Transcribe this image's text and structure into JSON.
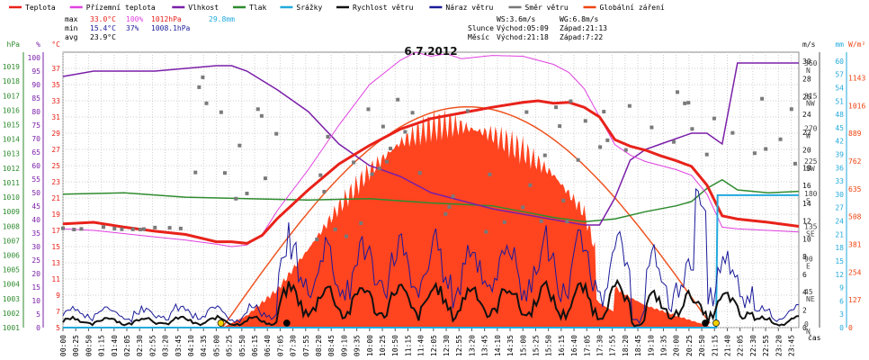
{
  "chart_data": {
    "type": "line",
    "title": "6.7.2012",
    "xlabel": "čas",
    "x_start": "00:00",
    "x_end": "23:59",
    "x_ticks": [
      "00:00",
      "00:25",
      "00:50",
      "01:15",
      "01:40",
      "02:05",
      "02:30",
      "02:55",
      "03:20",
      "03:45",
      "04:10",
      "04:35",
      "05:00",
      "05:25",
      "05:50",
      "06:15",
      "06:40",
      "07:05",
      "07:30",
      "07:55",
      "08:20",
      "08:45",
      "09:10",
      "09:35",
      "10:00",
      "10:25",
      "10:50",
      "11:15",
      "11:40",
      "12:05",
      "12:30",
      "12:55",
      "13:20",
      "13:45",
      "14:10",
      "14:35",
      "15:00",
      "15:25",
      "15:50",
      "16:15",
      "16:40",
      "17:05",
      "17:30",
      "17:55",
      "18:20",
      "18:45",
      "19:10",
      "19:35",
      "20:00",
      "20:25",
      "20:50",
      "21:15",
      "21:40",
      "22:05",
      "22:30",
      "22:55",
      "23:20",
      "23:45"
    ],
    "legend": [
      {
        "label": "Teplota",
        "color": "#e8221a"
      },
      {
        "label": "Přízemní teplota",
        "color": "#e040e0"
      },
      {
        "label": "Vlhkost",
        "color": "#7a1fa8"
      },
      {
        "label": "Tlak",
        "color": "#2e8b2e"
      },
      {
        "label": "Srážky",
        "color": "#22aadd"
      },
      {
        "label": "Rychlost větru",
        "color": "#111111"
      },
      {
        "label": "Náraz větru",
        "color": "#1a1a99"
      },
      {
        "label": "Směr větru",
        "color": "#777777"
      },
      {
        "label": "Globální záření",
        "color": "#ee4411"
      }
    ],
    "stats": {
      "max_label": "max",
      "max_temp": "33.0°C",
      "max_hum": "100%",
      "max_press": "1012hPa",
      "rain_total": "29.8mm",
      "min_label": "min",
      "min_temp": "15.4°C",
      "min_hum": "37%",
      "min_press": "1008.1hPa",
      "avg_label": "avg",
      "avg_temp": "23.9°C"
    },
    "info": {
      "ws": "WS:3.6m/s",
      "wg": "WG:6.8m/s",
      "sun_label": "Slunce",
      "sunrise": "Východ:05:09",
      "sunset": "Západ:21:13",
      "moon_label": "Měsíc",
      "moonrise": "Východ:21:18",
      "moonset": "Západ:7:22"
    },
    "axes_left": {
      "hpa": {
        "unit": "hPa",
        "color": "#2e8b2e",
        "ticks": [
          1001,
          1002,
          1003,
          1004,
          1005,
          1006,
          1007,
          1008,
          1009,
          1010,
          1011,
          1012,
          1013,
          1014,
          1015,
          1016,
          1017,
          1018,
          1019
        ]
      },
      "pct": {
        "unit": "%",
        "color": "#7a1fa8",
        "ticks": [
          0,
          5,
          10,
          15,
          20,
          25,
          30,
          35,
          40,
          45,
          50,
          55,
          60,
          65,
          70,
          75,
          80,
          85,
          90,
          95,
          100
        ]
      },
      "temp": {
        "unit": "°C",
        "color": "#e8221a",
        "ticks": [
          5,
          7,
          9,
          11,
          13,
          15,
          17,
          19,
          21,
          23,
          25,
          27,
          29,
          31,
          33,
          35,
          37
        ]
      }
    },
    "axes_right": {
      "ms": {
        "unit": "m/s",
        "color": "#111111",
        "ticks": [
          0,
          2,
          4,
          6,
          8,
          10,
          12,
          14,
          16,
          18,
          20,
          22,
          24,
          26,
          28,
          30
        ]
      },
      "dir": {
        "ticks": [
          "N",
          "NE",
          "E",
          "SE",
          "S",
          "SW",
          "W",
          "NW",
          "N"
        ],
        "values": [
          0,
          45,
          90,
          135,
          180,
          225,
          270,
          315,
          360
        ]
      },
      "mm": {
        "unit": "mm",
        "color": "#22aadd",
        "ticks": [
          0,
          3,
          6,
          9,
          12,
          15,
          18,
          21,
          24,
          27,
          30,
          33,
          36,
          39,
          42,
          45,
          48,
          51,
          54,
          57,
          60
        ]
      },
      "wm2": {
        "unit": "W/m²",
        "color": "#ee4411",
        "ticks": [
          0,
          127,
          254,
          381,
          508,
          635,
          762,
          889,
          1016,
          1143
        ]
      }
    },
    "ylim_temp": [
      5,
      39
    ],
    "ylim_hum": [
      0,
      102
    ],
    "ylim_press": [
      1001,
      1020
    ],
    "ylim_wind": [
      0,
      31
    ],
    "ylim_dir": [
      0,
      380
    ],
    "ylim_rain": [
      0,
      62
    ],
    "ylim_rad": [
      0,
      1260
    ],
    "series": [
      {
        "name": "Teplota",
        "color": "#e8221a",
        "x_hours": [
          0,
          1,
          2,
          3,
          4,
          5,
          5.5,
          6,
          6.5,
          7,
          8,
          9,
          10,
          11,
          12,
          13,
          14,
          15,
          15.5,
          16,
          16.5,
          17,
          17.5,
          18,
          18.5,
          19,
          19.5,
          20,
          20.5,
          21,
          21.5,
          22,
          23,
          24
        ],
        "values": [
          17.8,
          18.0,
          17.4,
          16.9,
          16.5,
          15.6,
          15.6,
          15.4,
          16.4,
          18.5,
          22,
          25.2,
          27.5,
          29.5,
          30.8,
          31.5,
          32.2,
          32.8,
          33.0,
          32.7,
          32.8,
          32.2,
          31.0,
          28.2,
          27.4,
          26.9,
          26.2,
          25.6,
          24.9,
          22.6,
          18.8,
          18.4,
          18.0,
          17.5
        ]
      },
      {
        "name": "Přízemní teplota",
        "color": "#e040e0",
        "x_hours": [
          0,
          1,
          2,
          3,
          4,
          5,
          5.5,
          6,
          6.5,
          7,
          8,
          9,
          10,
          11,
          11.5,
          12,
          12.5,
          13,
          14,
          15,
          16,
          16.5,
          17,
          17.5,
          18,
          18.5,
          19,
          20,
          20.5,
          21,
          21.5,
          22,
          23,
          24
        ],
        "values": [
          17.2,
          17.0,
          16.6,
          16.2,
          15.8,
          15.3,
          15.0,
          15.2,
          16.5,
          19.5,
          24.5,
          30,
          35,
          38,
          39,
          38.5,
          38.8,
          38.2,
          38.6,
          38.5,
          37.5,
          36.5,
          34.5,
          31,
          27.6,
          26.3,
          25.5,
          24.5,
          23.8,
          21.5,
          17.4,
          17.2,
          17,
          16.8
        ]
      },
      {
        "name": "Vlhkost",
        "color": "#7a1fa8",
        "x_hours": [
          0,
          1,
          2,
          3,
          4,
          5,
          5.5,
          6,
          7,
          8,
          9,
          10,
          11,
          12,
          13,
          14,
          15,
          16,
          17,
          17.5,
          18,
          18.5,
          19,
          19.5,
          20,
          20.5,
          21,
          21.5,
          22,
          23,
          24
        ],
        "values": [
          93,
          95,
          95,
          95,
          96,
          97,
          97,
          95,
          88,
          80,
          68,
          60,
          56,
          50,
          47,
          44,
          42,
          40,
          38,
          38,
          48,
          62,
          66,
          68,
          70,
          72,
          72,
          68,
          98,
          98,
          98
        ]
      },
      {
        "name": "Tlak",
        "color": "#2e8b2e",
        "x_hours": [
          0,
          2,
          4,
          6,
          8,
          10,
          12,
          14,
          15,
          16,
          17,
          18,
          19,
          20,
          20.5,
          21,
          21.5,
          22,
          23,
          24
        ],
        "values": [
          1010.2,
          1010.3,
          1010.0,
          1009.9,
          1009.8,
          1009.9,
          1009.6,
          1009.4,
          1009.0,
          1008.6,
          1008.3,
          1008.5,
          1009.0,
          1009.4,
          1009.7,
          1010.6,
          1011.2,
          1010.5,
          1010.3,
          1010.4
        ]
      },
      {
        "name": "Srážky",
        "color": "#22aadd",
        "x_hours": [
          0,
          21.3,
          21.35,
          24
        ],
        "values": [
          0,
          0,
          29.8,
          29.8
        ]
      },
      {
        "name": "Globální záření",
        "color": "#ee4411",
        "x_hours": [
          5.2,
          6,
          7,
          8,
          9,
          10,
          11,
          12,
          12.5,
          13,
          14,
          15,
          16,
          17,
          17.5,
          18,
          18.5,
          19,
          20,
          21,
          21.2
        ],
        "values": [
          0,
          60,
          190,
          390,
          600,
          780,
          920,
          1000,
          1010,
          1000,
          960,
          880,
          760,
          570,
          320,
          200,
          150,
          110,
          60,
          10,
          0
        ]
      }
    ]
  }
}
